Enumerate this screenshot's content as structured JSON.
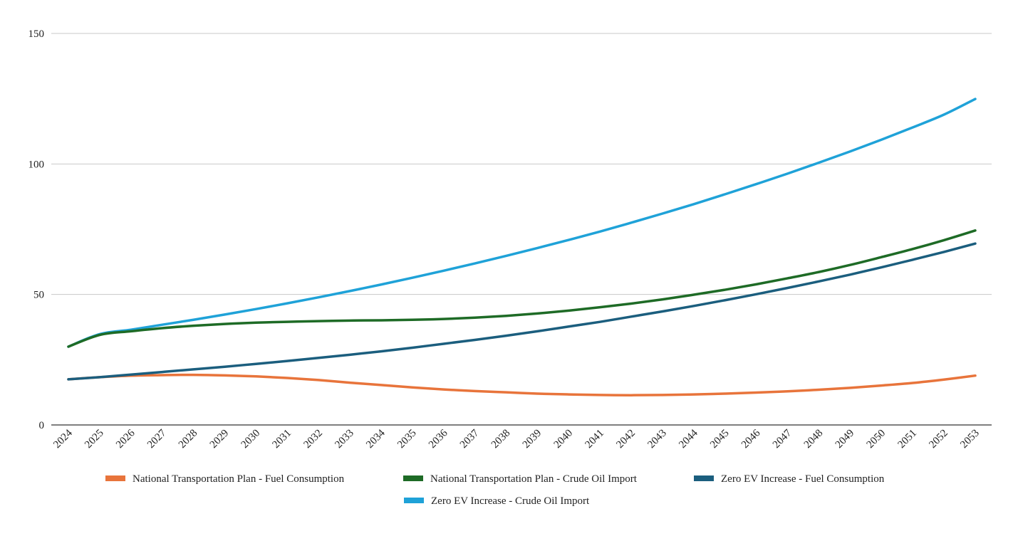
{
  "chart_data": {
    "type": "line",
    "title": "",
    "xlabel": "",
    "ylabel": "",
    "ylim": [
      0,
      150
    ],
    "yticks": [
      0,
      50,
      100,
      150
    ],
    "grid": true,
    "legend_position": "bottom",
    "categories": [
      "2024",
      "2025",
      "2026",
      "2027",
      "2028",
      "2029",
      "2030",
      "2031",
      "2032",
      "2033",
      "2034",
      "2035",
      "2036",
      "2037",
      "2038",
      "2039",
      "2040",
      "2041",
      "2042",
      "2043",
      "2044",
      "2045",
      "2046",
      "2047",
      "2048",
      "2049",
      "2050",
      "2051",
      "2052",
      "2053"
    ],
    "series": [
      {
        "name": "National Transportation Plan - Fuel Consumption",
        "color": "#e8743b",
        "values": [
          17.5,
          18.3,
          18.9,
          19.1,
          19.2,
          19.0,
          18.6,
          18.0,
          17.2,
          16.2,
          15.3,
          14.4,
          13.6,
          13.0,
          12.5,
          12.0,
          11.7,
          11.5,
          11.4,
          11.5,
          11.7,
          12.0,
          12.4,
          12.9,
          13.5,
          14.2,
          15.1,
          16.1,
          17.4,
          18.9
        ]
      },
      {
        "name": "National Transportation Plan - Crude Oil Import",
        "color": "#1e6b26",
        "values": [
          30.0,
          34.5,
          35.9,
          37.1,
          38.0,
          38.7,
          39.2,
          39.5,
          39.8,
          40.0,
          40.1,
          40.3,
          40.6,
          41.1,
          41.8,
          42.7,
          43.8,
          45.1,
          46.5,
          48.1,
          49.9,
          51.8,
          53.9,
          56.2,
          58.6,
          61.3,
          64.3,
          67.4,
          70.8,
          74.5
        ]
      },
      {
        "name": "Zero EV Increase - Fuel Consumption",
        "color": "#1b5e7e",
        "values": [
          17.5,
          18.3,
          19.3,
          20.3,
          21.3,
          22.3,
          23.4,
          24.5,
          25.7,
          26.9,
          28.2,
          29.6,
          31.1,
          32.6,
          34.2,
          35.9,
          37.7,
          39.5,
          41.5,
          43.5,
          45.6,
          47.8,
          50.1,
          52.5,
          55.0,
          57.6,
          60.4,
          63.3,
          66.3,
          69.5
        ]
      },
      {
        "name": "Zero EV Increase - Crude Oil Import",
        "color": "#1fa2d8",
        "values": [
          30.0,
          34.8,
          36.5,
          38.4,
          40.3,
          42.3,
          44.4,
          46.6,
          48.9,
          51.3,
          53.8,
          56.4,
          59.1,
          61.9,
          64.8,
          67.8,
          70.9,
          74.1,
          77.5,
          81.0,
          84.6,
          88.4,
          92.3,
          96.3,
          100.5,
          104.8,
          109.3,
          114.0,
          118.9,
          124.9
        ]
      }
    ],
    "legend_label": "National Transportation Plan - Fuel Consumption"
  }
}
